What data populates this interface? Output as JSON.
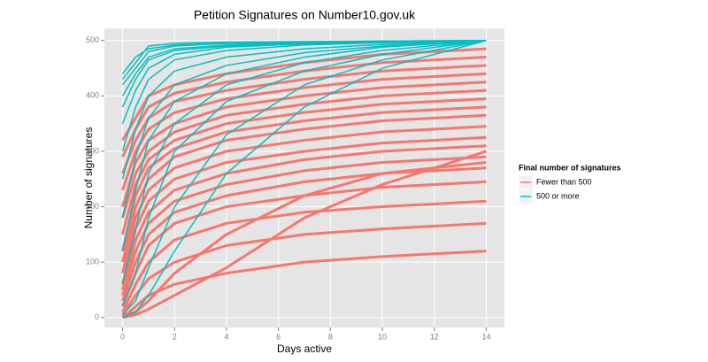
{
  "chart_data": {
    "type": "line",
    "title": "Petition Signatures on Number10.gov.uk",
    "x_label": "Days active",
    "y_label": "Number of signatures",
    "legend_title": "Final number of signatures",
    "legend": "right",
    "grid": true,
    "x": [
      0,
      0.5,
      1,
      2,
      4,
      7,
      10,
      14
    ],
    "xlim": [
      -0.7,
      14.7
    ],
    "xticks": [
      0,
      2,
      4,
      6,
      8,
      10,
      12,
      14
    ],
    "ylim": [
      -18,
      522
    ],
    "yticks": [
      0,
      100,
      200,
      300,
      400,
      500
    ],
    "series": [
      {
        "name": "Fewer than 500",
        "color": "#f8766d",
        "lines": [
          [
            0,
            20,
            40,
            60,
            80,
            100,
            110,
            120
          ],
          [
            5,
            40,
            70,
            100,
            130,
            150,
            160,
            170
          ],
          [
            10,
            60,
            100,
            140,
            170,
            190,
            200,
            210
          ],
          [
            20,
            80,
            130,
            170,
            200,
            220,
            235,
            245
          ],
          [
            30,
            100,
            150,
            190,
            220,
            245,
            260,
            270
          ],
          [
            40,
            120,
            170,
            210,
            240,
            265,
            280,
            290
          ],
          [
            50,
            140,
            190,
            230,
            260,
            285,
            300,
            310
          ],
          [
            60,
            160,
            210,
            250,
            280,
            300,
            315,
            325
          ],
          [
            80,
            180,
            230,
            270,
            300,
            320,
            335,
            345
          ],
          [
            100,
            200,
            250,
            290,
            320,
            340,
            355,
            365
          ],
          [
            120,
            220,
            270,
            305,
            335,
            355,
            370,
            380
          ],
          [
            150,
            240,
            285,
            320,
            350,
            370,
            385,
            395
          ],
          [
            180,
            260,
            300,
            335,
            365,
            385,
            400,
            410
          ],
          [
            200,
            280,
            320,
            350,
            380,
            400,
            415,
            425
          ],
          [
            230,
            300,
            340,
            370,
            395,
            415,
            430,
            440
          ],
          [
            260,
            320,
            360,
            390,
            410,
            430,
            445,
            455
          ],
          [
            290,
            340,
            380,
            405,
            425,
            445,
            460,
            470
          ],
          [
            320,
            360,
            400,
            420,
            440,
            460,
            475,
            485
          ],
          [
            2,
            10,
            30,
            80,
            150,
            220,
            260,
            280
          ],
          [
            0,
            5,
            15,
            40,
            90,
            180,
            240,
            300
          ]
        ]
      },
      {
        "name": "500 or more",
        "color": "#00bfc4",
        "lines": [
          [
            430,
            460,
            490,
            495,
            497,
            498,
            499,
            500
          ],
          [
            420,
            450,
            480,
            490,
            495,
            497,
            498,
            500
          ],
          [
            400,
            440,
            470,
            485,
            492,
            496,
            498,
            500
          ],
          [
            350,
            410,
            450,
            475,
            488,
            494,
            497,
            500
          ],
          [
            300,
            380,
            430,
            465,
            482,
            492,
            496,
            500
          ],
          [
            250,
            340,
            400,
            445,
            470,
            485,
            493,
            500
          ],
          [
            180,
            290,
            360,
            420,
            455,
            478,
            490,
            500
          ],
          [
            120,
            230,
            320,
            390,
            440,
            470,
            488,
            500
          ],
          [
            60,
            160,
            260,
            350,
            420,
            460,
            482,
            500
          ],
          [
            20,
            80,
            180,
            300,
            390,
            445,
            475,
            500
          ],
          [
            5,
            30,
            90,
            200,
            330,
            420,
            465,
            500
          ],
          [
            0,
            10,
            40,
            120,
            260,
            380,
            450,
            500
          ],
          [
            440,
            470,
            485,
            492,
            495,
            497,
            499,
            500
          ],
          [
            380,
            430,
            465,
            482,
            490,
            495,
            498,
            500
          ]
        ]
      }
    ]
  }
}
